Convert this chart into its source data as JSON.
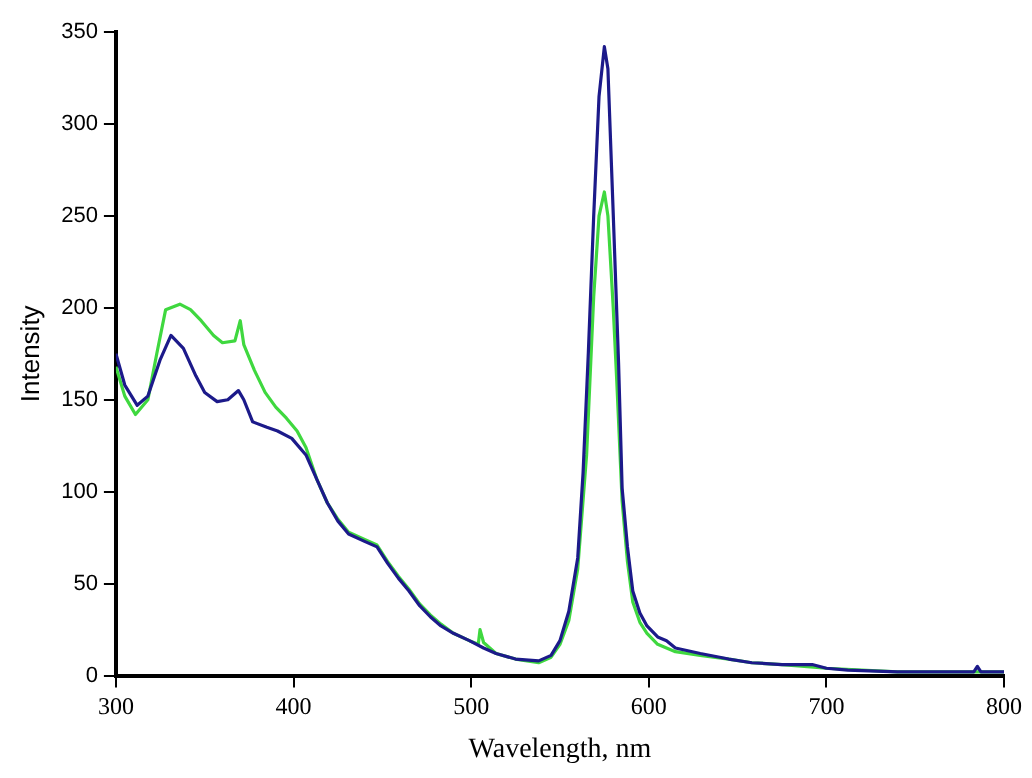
{
  "chart_data": {
    "type": "line",
    "xlabel": "Wavelength, nm",
    "ylabel": "Intensity",
    "xlim": [
      300,
      800
    ],
    "xticks": [
      300,
      400,
      500,
      600,
      700,
      800
    ],
    "ylim": [
      0,
      350
    ],
    "yticks": [
      0,
      50,
      100,
      150,
      200,
      250,
      300,
      350
    ],
    "grid": false,
    "legend": false,
    "marker": "none",
    "line_style": "solid",
    "series": [
      {
        "color": "#3fd83f",
        "x": [
          300,
          305,
          311,
          318,
          323,
          328,
          336,
          342,
          348,
          355,
          360,
          367,
          370,
          372,
          378,
          384,
          390,
          396,
          402,
          407,
          413,
          419,
          425,
          431,
          440,
          447,
          453,
          459,
          465,
          471,
          477,
          483,
          490,
          499,
          504,
          505,
          507,
          514,
          525,
          538,
          545,
          550,
          555,
          560,
          565,
          569,
          572,
          575,
          577,
          580,
          582,
          585,
          588,
          591,
          595,
          599,
          605,
          615,
          629,
          645,
          658,
          675,
          700,
          740,
          800
        ],
        "values": [
          168,
          152,
          142,
          150,
          175,
          199,
          202,
          199,
          193,
          185,
          181,
          182,
          193,
          180,
          166,
          154,
          146,
          140,
          133,
          124,
          107,
          94,
          85,
          78,
          74,
          71,
          62,
          54,
          47,
          39,
          33,
          28,
          23,
          19,
          17,
          25,
          18,
          12,
          9,
          7,
          10,
          17,
          30,
          58,
          120,
          206,
          250,
          263,
          250,
          200,
          160,
          95,
          62,
          40,
          29,
          23,
          17,
          13,
          11,
          9,
          7,
          6,
          4,
          2,
          2
        ]
      },
      {
        "color": "#1c1a8a",
        "x": [
          300,
          305,
          312,
          318,
          325,
          331,
          338,
          345,
          350,
          357,
          363,
          369,
          372,
          377,
          385,
          391,
          399,
          407,
          413,
          419,
          425,
          431,
          440,
          447,
          453,
          459,
          465,
          471,
          477,
          483,
          490,
          499,
          507,
          514,
          525,
          538,
          545,
          550,
          555,
          560,
          563,
          566,
          569,
          572,
          575,
          577,
          580,
          583,
          585,
          588,
          591,
          595,
          599,
          605,
          610,
          615,
          629,
          645,
          658,
          675,
          692,
          700,
          712,
          740,
          760,
          783,
          785,
          787,
          800
        ],
        "values": [
          175,
          158,
          147,
          152,
          172,
          185,
          178,
          163,
          154,
          149,
          150,
          155,
          150,
          138,
          135,
          133,
          129,
          120,
          107,
          94,
          84,
          77,
          73,
          70,
          61,
          53,
          46,
          38,
          32,
          27,
          23,
          19,
          15,
          12,
          9,
          8,
          11,
          19,
          35,
          64,
          110,
          176,
          250,
          315,
          342,
          330,
          251,
          170,
          102,
          70,
          46,
          34,
          27,
          21,
          19,
          15,
          12,
          9,
          7,
          6,
          6,
          4,
          3,
          2,
          2,
          2,
          5,
          2,
          2
        ]
      }
    ]
  }
}
